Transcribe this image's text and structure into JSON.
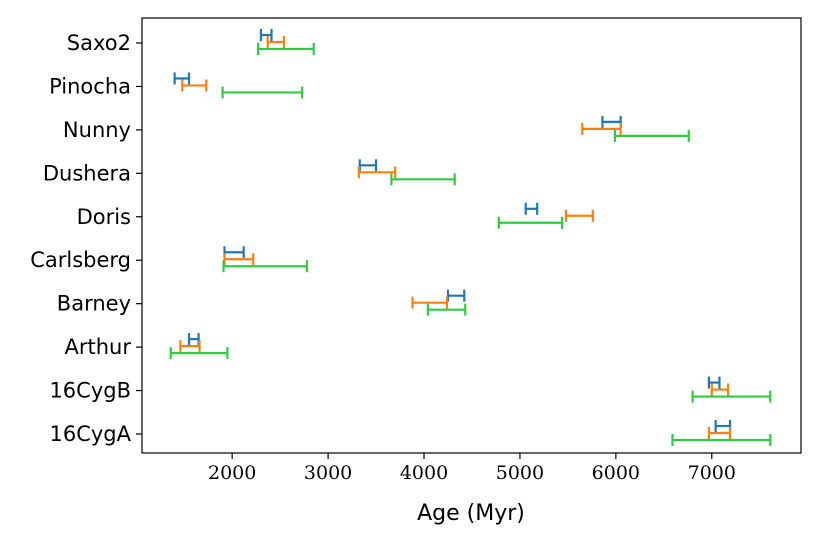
{
  "chart_data": {
    "type": "errorbar",
    "title": "",
    "xlabel": "Age (Myr)",
    "ylabel": "",
    "xlim": [
      1060,
      7930
    ],
    "xticks": [
      2000,
      3000,
      4000,
      5000,
      6000,
      7000
    ],
    "xtick_labels": [
      "2000",
      "3000",
      "4000",
      "5000",
      "6000",
      "7000"
    ],
    "grid": false,
    "legend": "none",
    "categories": [
      "Saxo2",
      "Pinocha",
      "Nunny",
      "Dushera",
      "Doris",
      "Carlsberg",
      "Barney",
      "Arthur",
      "16CygB",
      "16CygA"
    ],
    "series": [
      {
        "name": "blue",
        "color": "#1f77b4",
        "ranges": [
          [
            2300,
            2410
          ],
          [
            1400,
            1550
          ],
          [
            5860,
            6050
          ],
          [
            3330,
            3500
          ],
          [
            5060,
            5180
          ],
          [
            1920,
            2120
          ],
          [
            4250,
            4420
          ],
          [
            1550,
            1650
          ],
          [
            6970,
            7080
          ],
          [
            7040,
            7190
          ]
        ]
      },
      {
        "name": "orange",
        "color": "#ff7f0e",
        "ranges": [
          [
            2370,
            2540
          ],
          [
            1480,
            1730
          ],
          [
            5650,
            6050
          ],
          [
            3320,
            3700
          ],
          [
            5480,
            5760
          ],
          [
            1920,
            2220
          ],
          [
            3880,
            4240
          ],
          [
            1460,
            1660
          ],
          [
            7000,
            7170
          ],
          [
            6970,
            7190
          ]
        ]
      },
      {
        "name": "green",
        "color": "#2ecc40",
        "ranges": [
          [
            2270,
            2850
          ],
          [
            1900,
            2730
          ],
          [
            5990,
            6760
          ],
          [
            3660,
            4320
          ],
          [
            4780,
            5440
          ],
          [
            1910,
            2780
          ],
          [
            4040,
            4430
          ],
          [
            1360,
            1950
          ],
          [
            6800,
            7610
          ],
          [
            6590,
            7610
          ]
        ]
      }
    ]
  }
}
